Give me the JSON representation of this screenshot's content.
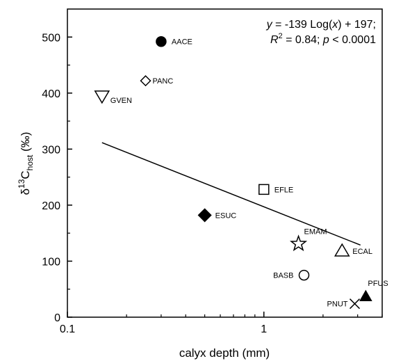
{
  "chart_data": {
    "type": "scatter",
    "xscale": "log",
    "xlim": [
      0.1,
      4.0
    ],
    "ylim": [
      0,
      550
    ],
    "xlabel": "calyx depth (mm)",
    "ylabel": {
      "prefix": "δ",
      "sup": "13",
      "main": "C",
      "sub": "host",
      "unit": " (‰)"
    },
    "xticks": [
      {
        "value": 0.1,
        "label": "0.1"
      },
      {
        "value": 1,
        "label": "1"
      }
    ],
    "yticks": [
      0,
      100,
      200,
      300,
      400,
      500
    ],
    "grid": false,
    "points": [
      {
        "label": "AACE",
        "x": 0.3,
        "y": 492,
        "marker": "filled-circle"
      },
      {
        "label": "PANC",
        "x": 0.25,
        "y": 422,
        "marker": "open-diamond"
      },
      {
        "label": "GVEN",
        "x": 0.15,
        "y": 395,
        "marker": "open-triangle-down"
      },
      {
        "label": "EFLE",
        "x": 1.0,
        "y": 228,
        "marker": "open-square"
      },
      {
        "label": "ESUC",
        "x": 0.5,
        "y": 182,
        "marker": "filled-diamond"
      },
      {
        "label": "EMAM",
        "x": 1.5,
        "y": 131,
        "marker": "open-star"
      },
      {
        "label": "ECAL",
        "x": 2.5,
        "y": 118,
        "marker": "open-triangle-up"
      },
      {
        "label": "BASB",
        "x": 1.6,
        "y": 75,
        "marker": "open-circle"
      },
      {
        "label": "PFUS",
        "x": 3.3,
        "y": 37,
        "marker": "filled-triangle-up"
      },
      {
        "label": "PNUT",
        "x": 2.9,
        "y": 24,
        "marker": "cross"
      }
    ],
    "fit": {
      "intercept": 197,
      "slope": -139,
      "x_range": [
        0.15,
        3.1
      ]
    },
    "equation": {
      "line1": {
        "a": "y",
        "b": " = -139 Log(",
        "c": "x",
        "d": ") + 197;"
      },
      "line2": {
        "a": "R",
        "sup": "2",
        "b": " = 0.84; ",
        "c": "p",
        "d": " < 0.0001"
      }
    }
  }
}
